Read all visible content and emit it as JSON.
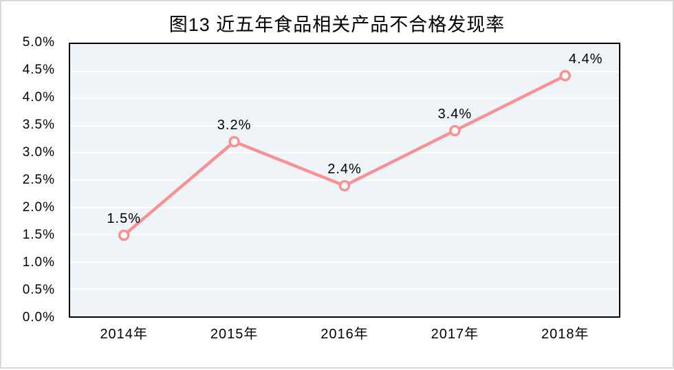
{
  "page": {
    "background_color": "#ffffff",
    "outer_border_color": "#d9d9d9"
  },
  "chart_data": {
    "type": "line",
    "title": "图13 近五年食品相关产品不合格发现率",
    "categories": [
      "2014年",
      "2015年",
      "2016年",
      "2017年",
      "2018年"
    ],
    "values": [
      1.5,
      3.2,
      2.4,
      3.4,
      4.4
    ],
    "data_labels": [
      "1.5%",
      "3.2%",
      "2.4%",
      "3.4%",
      "4.4%"
    ],
    "yticks": [
      "0.0%",
      "0.5%",
      "1.0%",
      "1.5%",
      "2.0%",
      "2.5%",
      "3.0%",
      "3.5%",
      "4.0%",
      "4.5%",
      "5.0%"
    ],
    "ytick_values": [
      0.0,
      0.5,
      1.0,
      1.5,
      2.0,
      2.5,
      3.0,
      3.5,
      4.0,
      4.5,
      5.0
    ],
    "ylim": [
      0,
      5
    ],
    "xlabel": "",
    "ylabel": "",
    "legend": "none",
    "grid": "horizontal gridlines, white, on light blue plot background",
    "marker_style": "open circle, white fill, pink ring",
    "label_offsets_x": [
      0,
      0,
      0,
      0,
      30
    ],
    "colors": {
      "line": "#fa9191",
      "marker_fill": "#ffffff",
      "marker_stroke": "#fa9191",
      "plot_background": "#eef4f8",
      "gridline": "#ffffff",
      "plot_border": "#000000",
      "text": "#000000"
    }
  }
}
